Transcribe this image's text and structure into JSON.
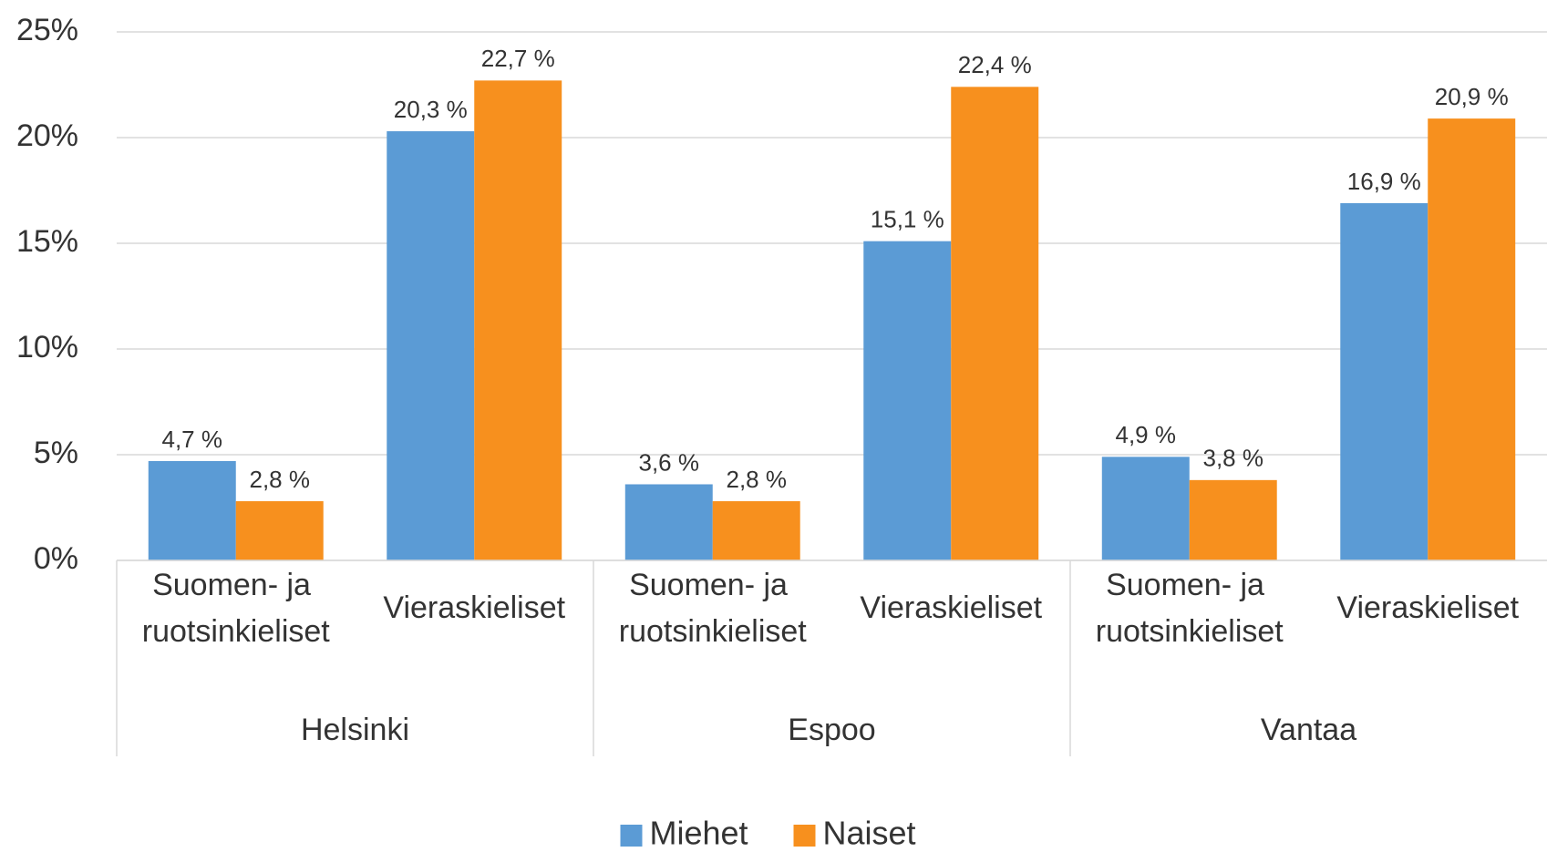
{
  "chart_data": {
    "type": "bar",
    "groups": [
      {
        "name": "Helsinki",
        "categories": [
          "Suomen- ja ruotsinkieliset",
          "Vieraskieliset"
        ]
      },
      {
        "name": "Espoo",
        "categories": [
          "Suomen- ja ruotsinkieliset",
          "Vieraskieliset"
        ]
      },
      {
        "name": "Vantaa",
        "categories": [
          "Suomen- ja ruotsinkieliset",
          "Vieraskieliset"
        ]
      }
    ],
    "series": [
      {
        "name": "Miehet",
        "color": "#5b9bd5",
        "values": [
          4.7,
          20.3,
          3.6,
          15.1,
          4.9,
          16.9
        ],
        "value_labels": [
          "4,7 %",
          "20,3 %",
          "3,6 %",
          "15,1 %",
          "4,9 %",
          "16,9 %"
        ]
      },
      {
        "name": "Naiset",
        "color": "#f7901e",
        "values": [
          2.8,
          22.7,
          2.8,
          22.4,
          3.8,
          20.9
        ],
        "value_labels": [
          "2,8 %",
          "22,7 %",
          "2,8 %",
          "22,4 %",
          "3,8 %",
          "20,9 %"
        ]
      }
    ],
    "ylim": [
      0,
      25
    ],
    "yticks": [
      {
        "value": 0,
        "label": "0%"
      },
      {
        "value": 5,
        "label": "5%"
      },
      {
        "value": 10,
        "label": "10%"
      },
      {
        "value": 15,
        "label": "15%"
      },
      {
        "value": 20,
        "label": "20%"
      },
      {
        "value": 25,
        "label": "25%"
      }
    ],
    "grid": true,
    "legend": "bottom"
  }
}
